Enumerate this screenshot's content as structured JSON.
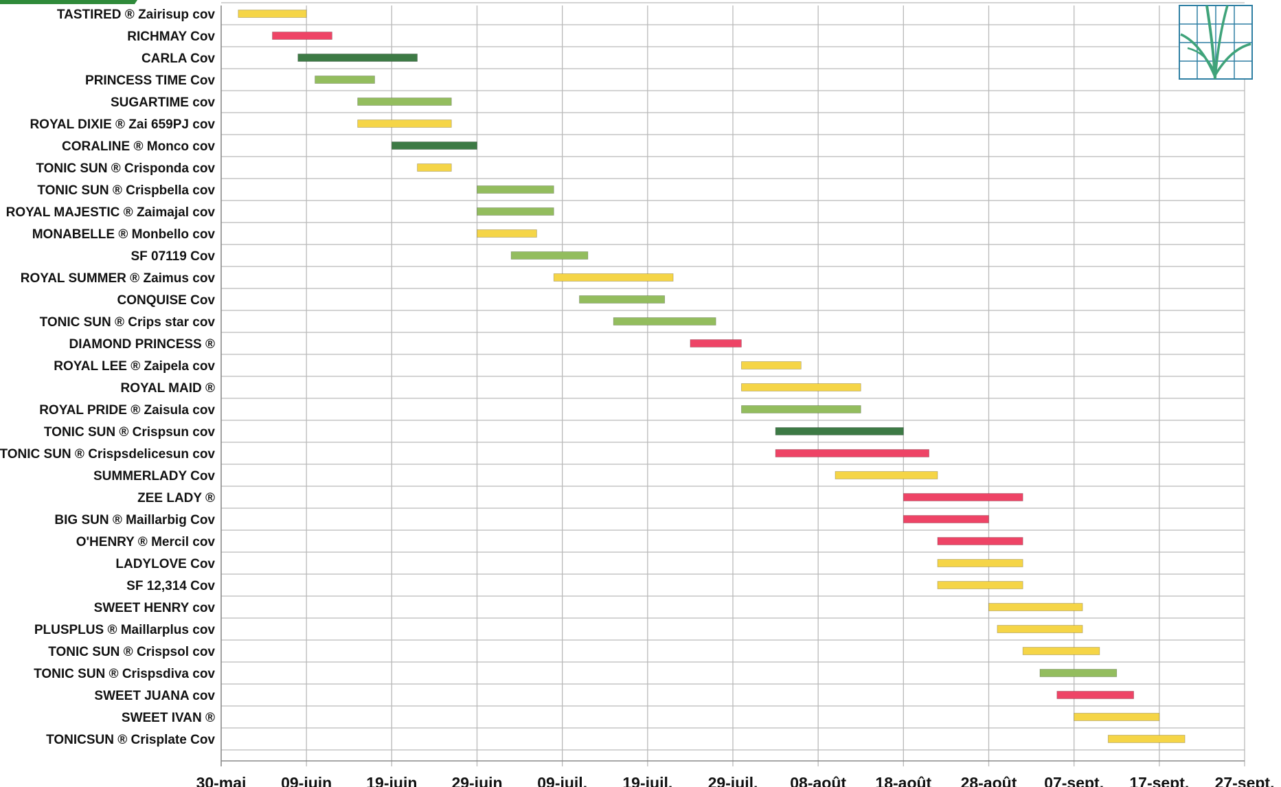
{
  "chart_data": {
    "type": "gantt",
    "title": "",
    "xlabel": "",
    "ylabel": "",
    "year": "2021",
    "x_ticks": [
      "30-mai",
      "09-juin",
      "19-juin",
      "29-juin",
      "09-juil.",
      "19-juil.",
      "29-juil.",
      "08-août",
      "18-août",
      "28-août",
      "07-sept.",
      "17-sept.",
      "27-sept."
    ],
    "x_tick_dates": [
      "2021-05-30",
      "2021-06-09",
      "2021-06-19",
      "2021-06-29",
      "2021-07-09",
      "2021-07-19",
      "2021-07-29",
      "2021-08-08",
      "2021-08-18",
      "2021-08-28",
      "2021-09-07",
      "2021-09-17",
      "2021-09-27"
    ],
    "xlim": [
      "2021-05-30",
      "2021-09-27"
    ],
    "grid": true,
    "legend": "none",
    "colors": {
      "yellow": "#f5d547",
      "red": "#ee4466",
      "dark_green": "#3d7a45",
      "light_green": "#93bd5e"
    },
    "rows": [
      {
        "label": "TASTIRED ® Zairisup cov",
        "start": "2021-06-01",
        "end": "2021-06-09",
        "color": "yellow"
      },
      {
        "label": "RICHMAY Cov",
        "start": "2021-06-05",
        "end": "2021-06-12",
        "color": "red"
      },
      {
        "label": "CARLA Cov",
        "start": "2021-06-08",
        "end": "2021-06-22",
        "color": "dark_green"
      },
      {
        "label": "PRINCESS TIME Cov",
        "start": "2021-06-10",
        "end": "2021-06-17",
        "color": "light_green"
      },
      {
        "label": "SUGARTIME cov",
        "start": "2021-06-15",
        "end": "2021-06-26",
        "color": "light_green"
      },
      {
        "label": "ROYAL DIXIE ® Zai 659PJ cov",
        "start": "2021-06-15",
        "end": "2021-06-26",
        "color": "yellow"
      },
      {
        "label": "CORALINE ® Monco cov",
        "start": "2021-06-19",
        "end": "2021-06-29",
        "color": "dark_green"
      },
      {
        "label": "TONIC SUN ® Crisponda cov",
        "start": "2021-06-22",
        "end": "2021-06-26",
        "color": "yellow"
      },
      {
        "label": "TONIC SUN ® Crispbella cov",
        "start": "2021-06-29",
        "end": "2021-07-08",
        "color": "light_green"
      },
      {
        "label": "ROYAL MAJESTIC ® Zaimajal cov",
        "start": "2021-06-29",
        "end": "2021-07-08",
        "color": "light_green"
      },
      {
        "label": "MONABELLE ® Monbello cov",
        "start": "2021-06-29",
        "end": "2021-07-06",
        "color": "yellow"
      },
      {
        "label": "SF 07119 Cov",
        "start": "2021-07-03",
        "end": "2021-07-12",
        "color": "light_green"
      },
      {
        "label": "ROYAL SUMMER ® Zaimus cov",
        "start": "2021-07-08",
        "end": "2021-07-22",
        "color": "yellow"
      },
      {
        "label": "CONQUISE Cov",
        "start": "2021-07-11",
        "end": "2021-07-21",
        "color": "light_green"
      },
      {
        "label": "TONIC SUN ®  Crips star cov",
        "start": "2021-07-15",
        "end": "2021-07-27",
        "color": "light_green"
      },
      {
        "label": "DIAMOND PRINCESS ®",
        "start": "2021-07-24",
        "end": "2021-07-30",
        "color": "red"
      },
      {
        "label": "ROYAL LEE ® Zaipela cov",
        "start": "2021-07-30",
        "end": "2021-08-06",
        "color": "yellow"
      },
      {
        "label": "ROYAL MAID ®",
        "start": "2021-07-30",
        "end": "2021-08-13",
        "color": "yellow"
      },
      {
        "label": "ROYAL PRIDE ® Zaisula cov",
        "start": "2021-07-30",
        "end": "2021-08-13",
        "color": "light_green"
      },
      {
        "label": "TONIC SUN ® Crispsun cov",
        "start": "2021-08-03",
        "end": "2021-08-18",
        "color": "dark_green"
      },
      {
        "label": "TONIC SUN ® Crispsdelicesun cov",
        "start": "2021-08-03",
        "end": "2021-08-21",
        "color": "red"
      },
      {
        "label": "SUMMERLADY Cov",
        "start": "2021-08-10",
        "end": "2021-08-22",
        "color": "yellow"
      },
      {
        "label": "ZEE LADY ®",
        "start": "2021-08-18",
        "end": "2021-09-01",
        "color": "red"
      },
      {
        "label": "BIG SUN ® Maillarbig Cov",
        "start": "2021-08-18",
        "end": "2021-08-28",
        "color": "red"
      },
      {
        "label": "O'HENRY ® Mercil cov",
        "start": "2021-08-22",
        "end": "2021-09-01",
        "color": "red"
      },
      {
        "label": "LADYLOVE Cov",
        "start": "2021-08-22",
        "end": "2021-09-01",
        "color": "yellow"
      },
      {
        "label": "SF 12,314 Cov",
        "start": "2021-08-22",
        "end": "2021-09-01",
        "color": "yellow"
      },
      {
        "label": "SWEET HENRY cov",
        "start": "2021-08-28",
        "end": "2021-09-08",
        "color": "yellow"
      },
      {
        "label": "PLUSPLUS ® Maillarplus cov",
        "start": "2021-08-29",
        "end": "2021-09-08",
        "color": "yellow"
      },
      {
        "label": "TONIC SUN ® Crispsol cov",
        "start": "2021-09-01",
        "end": "2021-09-10",
        "color": "yellow"
      },
      {
        "label": "TONIC SUN ® Crispsdiva  cov",
        "start": "2021-09-03",
        "end": "2021-09-12",
        "color": "light_green"
      },
      {
        "label": "SWEET JUANA cov",
        "start": "2021-09-05",
        "end": "2021-09-14",
        "color": "red"
      },
      {
        "label": "SWEET IVAN ®",
        "start": "2021-09-07",
        "end": "2021-09-17",
        "color": "yellow"
      },
      {
        "label": "TONICSUN ® Crisplate Cov",
        "start": "2021-09-11",
        "end": "2021-09-20",
        "color": "yellow"
      }
    ]
  },
  "logo": {
    "icon": "plant-grid-logo-icon",
    "frame_color": "#2e7fa3",
    "leaf_color": "#3fa37a"
  },
  "header_fragment": {
    "icon": "header-fragment-icon",
    "color": "#2f8a3a"
  }
}
